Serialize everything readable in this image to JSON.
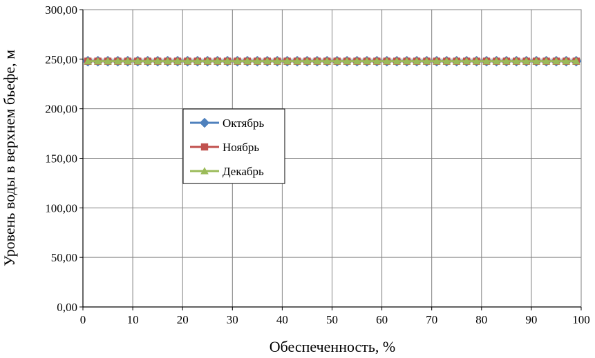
{
  "chart_data": {
    "type": "line",
    "xlabel": "Обеспеченность, %",
    "ylabel": "Уровень воды в верхнем бьефе, м",
    "xlim": [
      0,
      100
    ],
    "ylim": [
      0,
      300
    ],
    "x_ticks": [
      "0",
      "10",
      "20",
      "30",
      "40",
      "50",
      "60",
      "70",
      "80",
      "90",
      "100"
    ],
    "y_ticks": [
      "0,00",
      "50,00",
      "100,00",
      "150,00",
      "200,00",
      "250,00",
      "300,00"
    ],
    "grid": true,
    "legend": "inside-left",
    "x": [
      1,
      3,
      5,
      7,
      9,
      11,
      13,
      15,
      17,
      19,
      21,
      23,
      25,
      27,
      29,
      31,
      33,
      35,
      37,
      39,
      41,
      43,
      45,
      47,
      49,
      51,
      53,
      55,
      57,
      59,
      61,
      63,
      65,
      67,
      69,
      71,
      73,
      75,
      77,
      79,
      81,
      83,
      85,
      87,
      89,
      91,
      93,
      95,
      97,
      99
    ],
    "series": [
      {
        "name": "Октябрь",
        "color": "#4F81BD",
        "marker": "diamond",
        "values": [
          248,
          248,
          248,
          248,
          248,
          248,
          248,
          248,
          248,
          248,
          248,
          248,
          248,
          248,
          248,
          248,
          248,
          248,
          248,
          248,
          248,
          248,
          248,
          248,
          248,
          248,
          248,
          248,
          248,
          248,
          248,
          248,
          248,
          248,
          248,
          248,
          248,
          248,
          248,
          248,
          248,
          248,
          248,
          248,
          248,
          248,
          248,
          248,
          248,
          248
        ]
      },
      {
        "name": "Ноябрь",
        "color": "#C0504D",
        "marker": "square",
        "values": [
          248,
          248,
          248,
          248,
          248,
          248,
          248,
          248,
          248,
          248,
          248,
          248,
          248,
          248,
          248,
          248,
          248,
          248,
          248,
          248,
          248,
          248,
          248,
          248,
          248,
          248,
          248,
          248,
          248,
          248,
          248,
          248,
          248,
          248,
          248,
          248,
          248,
          248,
          248,
          248,
          248,
          248,
          248,
          248,
          248,
          248,
          248,
          248,
          248,
          248
        ]
      },
      {
        "name": "Декабрь",
        "color": "#9BBB59",
        "marker": "triangle",
        "values": [
          248,
          248,
          248,
          248,
          248,
          248,
          248,
          248,
          248,
          248,
          248,
          248,
          248,
          248,
          248,
          248,
          248,
          248,
          248,
          248,
          248,
          248,
          248,
          248,
          248,
          248,
          248,
          248,
          248,
          248,
          248,
          248,
          248,
          248,
          248,
          248,
          248,
          248,
          248,
          248,
          248,
          248,
          248,
          248,
          248,
          248,
          248,
          248,
          248,
          248
        ]
      }
    ]
  }
}
